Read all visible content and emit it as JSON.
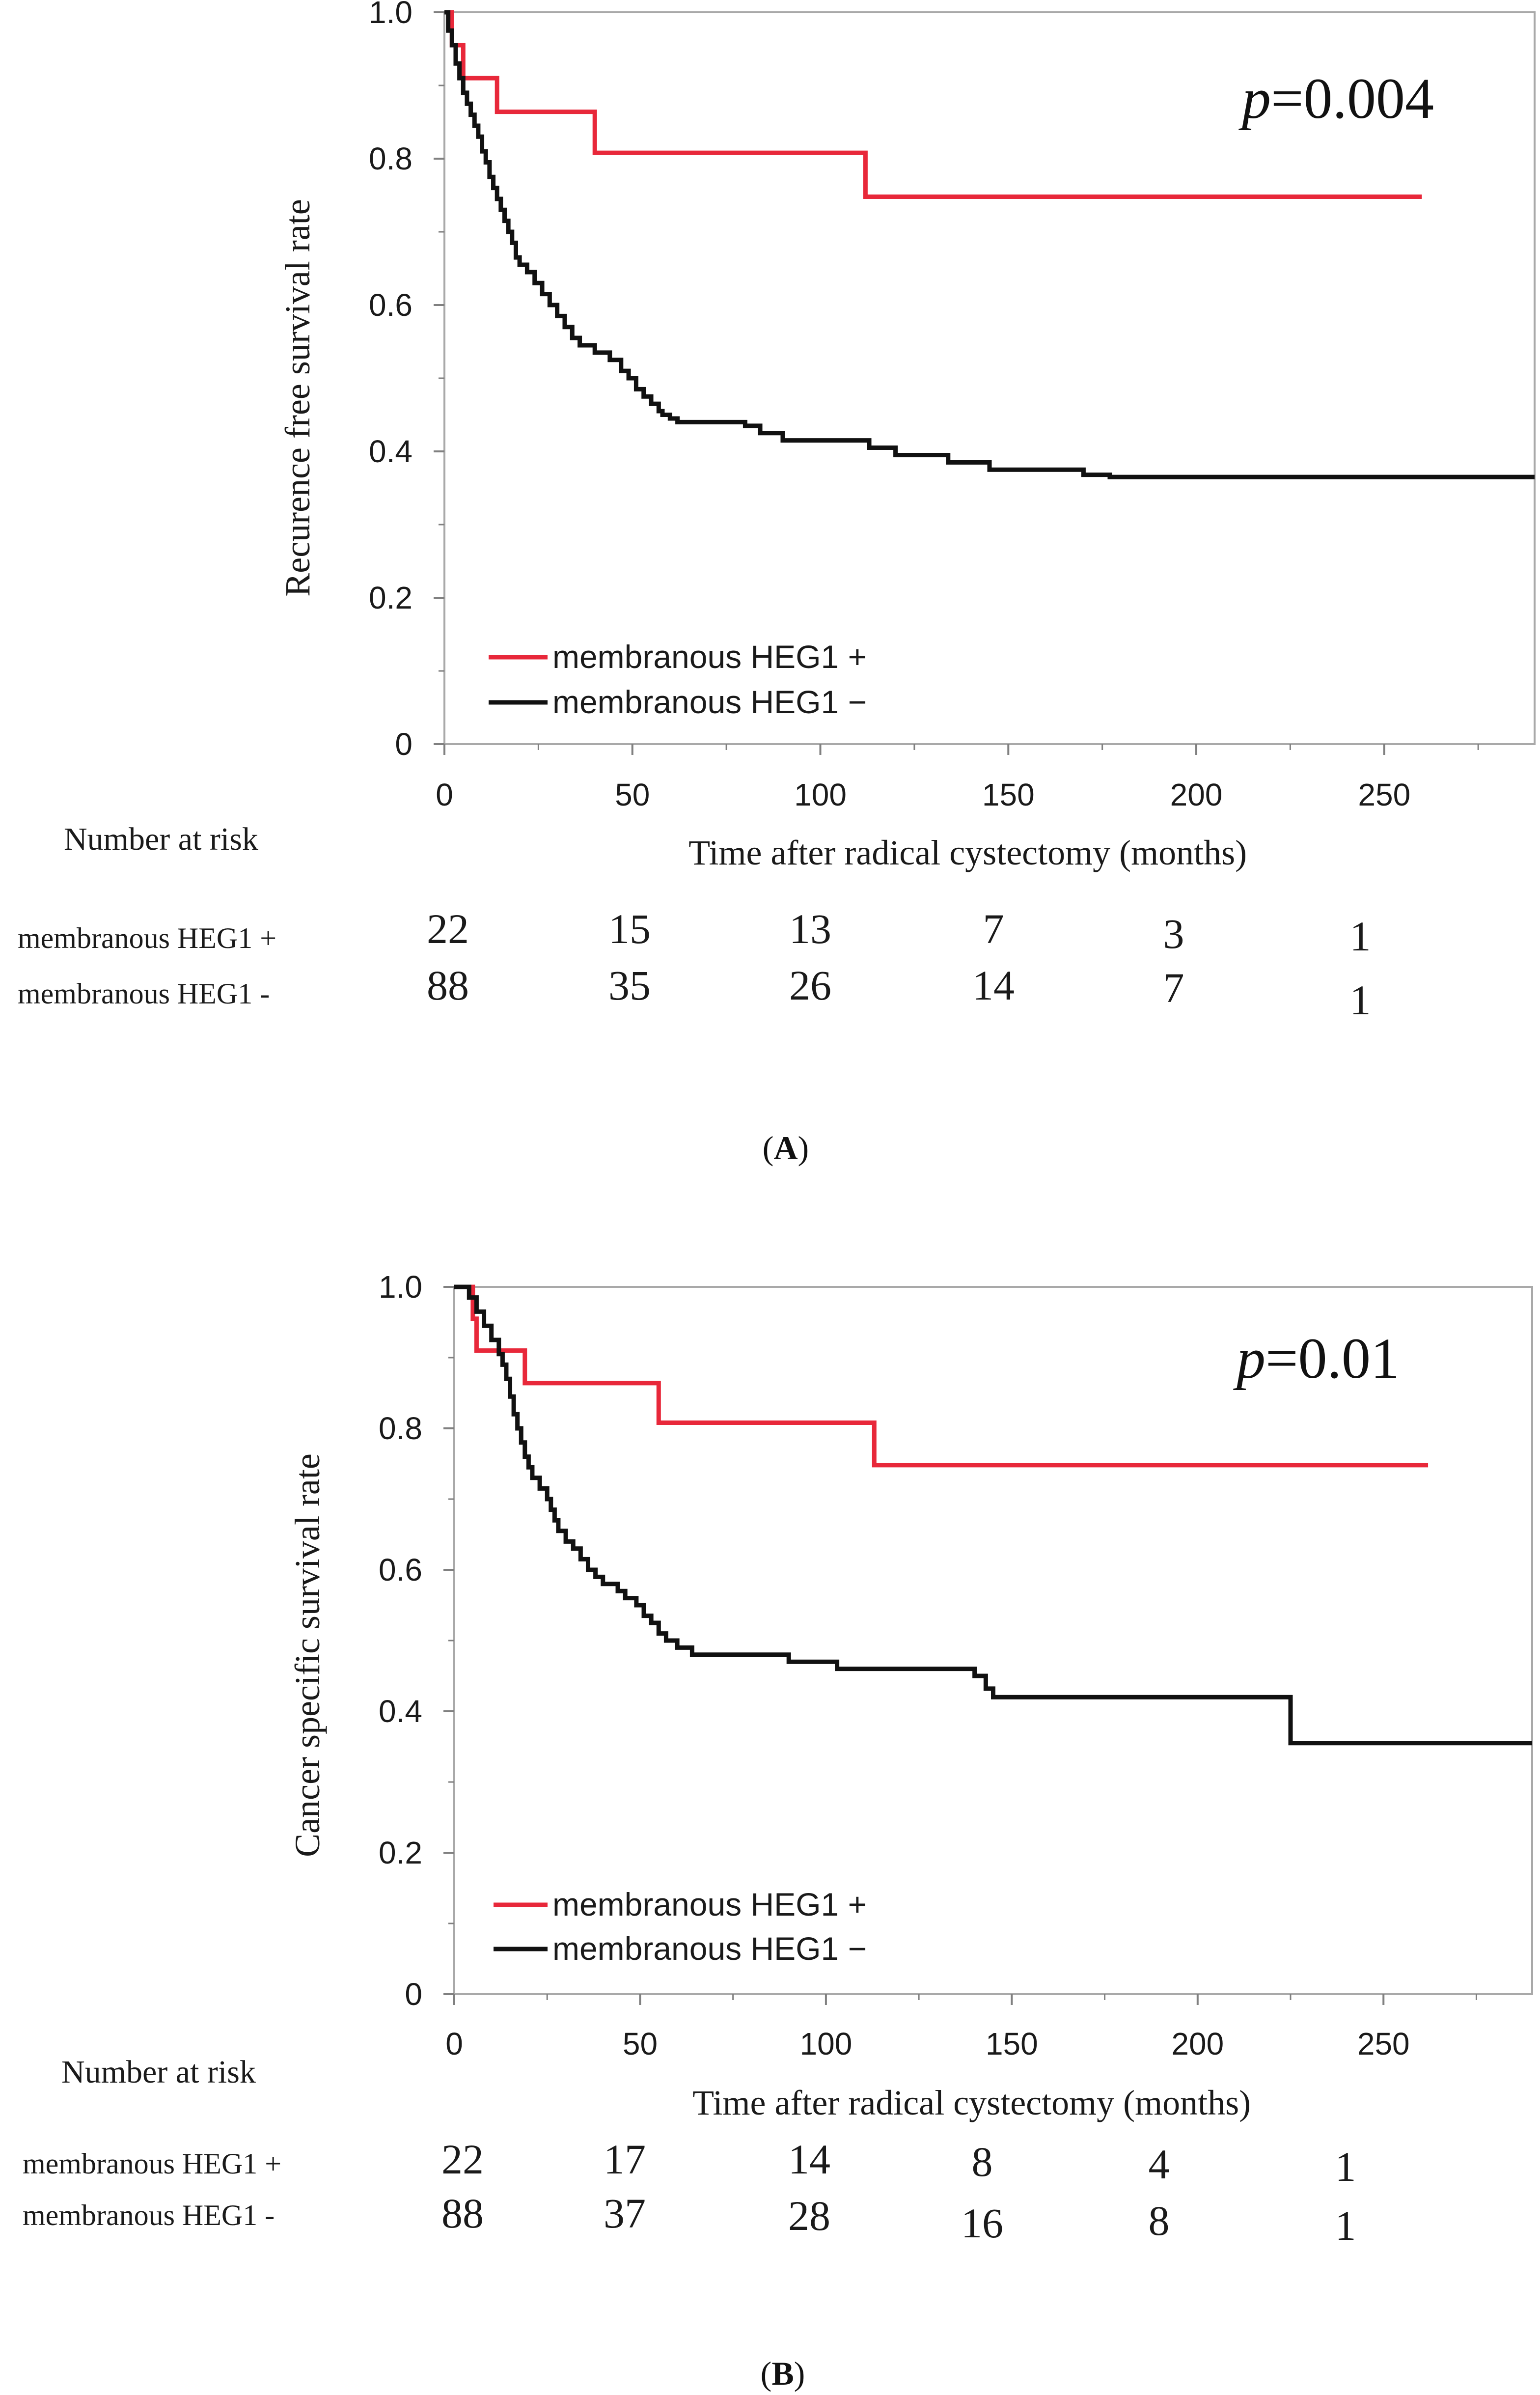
{
  "chart_data": [
    {
      "type": "line",
      "panel": "A",
      "ylabel": "Recurence free survival rate",
      "xlabel": "Time after radical cystectomy (months)",
      "xlim": [
        0,
        290
      ],
      "ylim": [
        0,
        1.0
      ],
      "x_ticks": [
        0,
        50,
        100,
        150,
        200,
        250
      ],
      "x_tick_labels": [
        "0",
        "50",
        "100",
        "150",
        "200",
        "250"
      ],
      "y_ticks": [
        0,
        0.2,
        0.4,
        0.6,
        0.8,
        1.0
      ],
      "y_tick_labels": [
        "0",
        "0.2",
        "0.4",
        "0.6",
        "0.8",
        "1.0"
      ],
      "p_italic": "p",
      "p_rest": "=0.004",
      "colors": {
        "positive": "#e8283a",
        "negative": "#111111"
      },
      "series": [
        {
          "name": "membranous HEG1 +",
          "legend_label": "membranous HEG1 +",
          "color_key": "positive",
          "step_points": [
            [
              0,
              1.0
            ],
            [
              2,
              0.955
            ],
            [
              5,
              0.91
            ],
            [
              14,
              0.864
            ],
            [
              40,
              0.808
            ],
            [
              112,
              0.748
            ],
            [
              260,
              0.748
            ]
          ]
        },
        {
          "name": "membranous HEG1 −",
          "legend_label": "membranous HEG1 −",
          "color_key": "negative",
          "step_points": [
            [
              0,
              1.0
            ],
            [
              1,
              0.975
            ],
            [
              2,
              0.955
            ],
            [
              3,
              0.93
            ],
            [
              4,
              0.91
            ],
            [
              5,
              0.89
            ],
            [
              6,
              0.875
            ],
            [
              7,
              0.86
            ],
            [
              8,
              0.845
            ],
            [
              9,
              0.83
            ],
            [
              10,
              0.81
            ],
            [
              11,
              0.795
            ],
            [
              12,
              0.775
            ],
            [
              13,
              0.76
            ],
            [
              14,
              0.745
            ],
            [
              15,
              0.73
            ],
            [
              16,
              0.715
            ],
            [
              17,
              0.7
            ],
            [
              18,
              0.685
            ],
            [
              19,
              0.665
            ],
            [
              20,
              0.655
            ],
            [
              22,
              0.645
            ],
            [
              24,
              0.63
            ],
            [
              26,
              0.615
            ],
            [
              28,
              0.6
            ],
            [
              30,
              0.585
            ],
            [
              32,
              0.57
            ],
            [
              34,
              0.555
            ],
            [
              36,
              0.545
            ],
            [
              40,
              0.535
            ],
            [
              44,
              0.525
            ],
            [
              47,
              0.51
            ],
            [
              49,
              0.5
            ],
            [
              51,
              0.485
            ],
            [
              53,
              0.475
            ],
            [
              55,
              0.465
            ],
            [
              57,
              0.455
            ],
            [
              58,
              0.45
            ],
            [
              60,
              0.445
            ],
            [
              62,
              0.44
            ],
            [
              64,
              0.44
            ],
            [
              80,
              0.435
            ],
            [
              84,
              0.425
            ],
            [
              90,
              0.415
            ],
            [
              113,
              0.405
            ],
            [
              120,
              0.395
            ],
            [
              134,
              0.385
            ],
            [
              145,
              0.375
            ],
            [
              170,
              0.368
            ],
            [
              177,
              0.365
            ],
            [
              290,
              0.365
            ]
          ]
        }
      ],
      "number_at_risk": {
        "title": "Number at risk",
        "rows": [
          {
            "label": "membranous HEG1 +",
            "values": [
              "22",
              "15",
              "13",
              "7",
              "3",
              "1"
            ]
          },
          {
            "label": "membranous HEG1 -",
            "values": [
              "88",
              "35",
              "26",
              "14",
              "7",
              "1"
            ]
          }
        ]
      },
      "caption": "A"
    },
    {
      "type": "line",
      "panel": "B",
      "ylabel": "Cancer specific survival rate",
      "xlabel": "Time after radical cystectomy (months)",
      "xlim": [
        0,
        290
      ],
      "ylim": [
        0,
        1.0
      ],
      "x_ticks": [
        0,
        50,
        100,
        150,
        200,
        250
      ],
      "x_tick_labels": [
        "0",
        "50",
        "100",
        "150",
        "200",
        "250"
      ],
      "y_ticks": [
        0,
        0.2,
        0.4,
        0.6,
        0.8,
        1.0
      ],
      "y_tick_labels": [
        "0",
        "0.2",
        "0.4",
        "0.6",
        "0.8",
        "1.0"
      ],
      "p_italic": "p",
      "p_rest": "=0.01",
      "colors": {
        "positive": "#e8283a",
        "negative": "#111111"
      },
      "series": [
        {
          "name": "membranous HEG1 +",
          "legend_label": "membranous HEG1 +",
          "color_key": "positive",
          "step_points": [
            [
              0,
              1.0
            ],
            [
              5,
              0.955
            ],
            [
              6,
              0.91
            ],
            [
              19,
              0.864
            ],
            [
              55,
              0.808
            ],
            [
              113,
              0.748
            ],
            [
              262,
              0.748
            ]
          ]
        },
        {
          "name": "membranous HEG1 −",
          "legend_label": "membranous HEG1 −",
          "color_key": "negative",
          "step_points": [
            [
              0,
              1.0
            ],
            [
              4,
              0.985
            ],
            [
              6,
              0.965
            ],
            [
              8,
              0.945
            ],
            [
              10,
              0.925
            ],
            [
              12,
              0.905
            ],
            [
              13,
              0.89
            ],
            [
              14,
              0.87
            ],
            [
              15,
              0.845
            ],
            [
              16,
              0.82
            ],
            [
              17,
              0.8
            ],
            [
              18,
              0.78
            ],
            [
              19,
              0.76
            ],
            [
              20,
              0.745
            ],
            [
              21,
              0.73
            ],
            [
              23,
              0.715
            ],
            [
              25,
              0.7
            ],
            [
              26,
              0.685
            ],
            [
              27,
              0.67
            ],
            [
              28,
              0.655
            ],
            [
              30,
              0.64
            ],
            [
              32,
              0.63
            ],
            [
              34,
              0.615
            ],
            [
              36,
              0.6
            ],
            [
              38,
              0.59
            ],
            [
              40,
              0.58
            ],
            [
              44,
              0.57
            ],
            [
              46,
              0.56
            ],
            [
              49,
              0.55
            ],
            [
              51,
              0.535
            ],
            [
              53,
              0.525
            ],
            [
              55,
              0.51
            ],
            [
              57,
              0.5
            ],
            [
              60,
              0.49
            ],
            [
              64,
              0.48
            ],
            [
              90,
              0.47
            ],
            [
              103,
              0.46
            ],
            [
              140,
              0.45
            ],
            [
              141,
              0.45
            ],
            [
              143,
              0.432
            ],
            [
              145,
              0.42
            ],
            [
              222,
              0.42
            ],
            [
              225,
              0.355
            ],
            [
              290,
              0.355
            ]
          ]
        }
      ],
      "number_at_risk": {
        "title": "Number at risk",
        "rows": [
          {
            "label": "membranous HEG1 +",
            "values": [
              "22",
              "17",
              "14",
              "8",
              "4",
              "1"
            ]
          },
          {
            "label": "membranous HEG1 -",
            "values": [
              "88",
              "37",
              "28",
              "16",
              "8",
              "1"
            ]
          }
        ]
      },
      "caption": "B"
    }
  ]
}
